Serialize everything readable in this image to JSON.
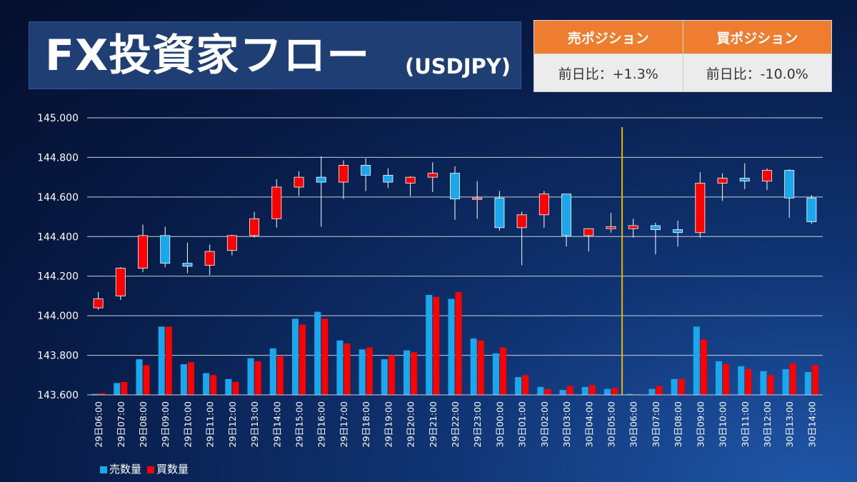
{
  "header": {
    "title_main": "FX投資家フロー",
    "title_sub": "(USDJPY)"
  },
  "positions": {
    "sell_label": "売ポジション",
    "buy_label": "買ポジション",
    "sell_change": "前日比：+1.3%",
    "buy_change": "前日比：-10.0%",
    "header_color": "#ee7d30"
  },
  "chart_data": {
    "type": "candlestick+bar",
    "ylim": [
      143.6,
      145.0
    ],
    "yticks": [
      "145.000",
      "144.800",
      "144.600",
      "144.400",
      "144.200",
      "144.000",
      "143.800",
      "143.600"
    ],
    "categories": [
      "29日06:00",
      "29日07:00",
      "29日08:00",
      "29日09:00",
      "29日10:00",
      "29日11:00",
      "29日12:00",
      "29日13:00",
      "29日14:00",
      "29日15:00",
      "29日16:00",
      "29日17:00",
      "29日18:00",
      "29日19:00",
      "29日20:00",
      "29日21:00",
      "29日22:00",
      "29日23:00",
      "30日00:00",
      "30日01:00",
      "30日02:00",
      "30日03:00",
      "30日04:00",
      "30日05:00",
      "30日06:00",
      "30日07:00",
      "30日08:00",
      "30日09:00",
      "30日10:00",
      "30日11:00",
      "30日12:00",
      "30日13:00",
      "30日14:00"
    ],
    "candles": [
      {
        "o": 144.04,
        "h": 144.12,
        "l": 144.03,
        "c": 144.085
      },
      {
        "o": 144.1,
        "h": 144.245,
        "l": 144.08,
        "c": 144.24
      },
      {
        "o": 144.24,
        "h": 144.46,
        "l": 144.22,
        "c": 144.405
      },
      {
        "o": 144.405,
        "h": 144.45,
        "l": 144.245,
        "c": 144.265
      },
      {
        "o": 144.265,
        "h": 144.37,
        "l": 144.215,
        "c": 144.25
      },
      {
        "o": 144.255,
        "h": 144.36,
        "l": 144.205,
        "c": 144.325
      },
      {
        "o": 144.33,
        "h": 144.41,
        "l": 144.305,
        "c": 144.405
      },
      {
        "o": 144.405,
        "h": 144.525,
        "l": 144.395,
        "c": 144.49
      },
      {
        "o": 144.49,
        "h": 144.69,
        "l": 144.445,
        "c": 144.65
      },
      {
        "o": 144.65,
        "h": 144.73,
        "l": 144.605,
        "c": 144.7
      },
      {
        "o": 144.7,
        "h": 144.805,
        "l": 144.45,
        "c": 144.675
      },
      {
        "o": 144.675,
        "h": 144.785,
        "l": 144.59,
        "c": 144.76
      },
      {
        "o": 144.76,
        "h": 144.795,
        "l": 144.63,
        "c": 144.71
      },
      {
        "o": 144.71,
        "h": 144.745,
        "l": 144.645,
        "c": 144.675
      },
      {
        "o": 144.67,
        "h": 144.705,
        "l": 144.605,
        "c": 144.7
      },
      {
        "o": 144.7,
        "h": 144.775,
        "l": 144.625,
        "c": 144.72
      },
      {
        "o": 144.72,
        "h": 144.755,
        "l": 144.485,
        "c": 144.59
      },
      {
        "o": 144.59,
        "h": 144.68,
        "l": 144.49,
        "c": 144.595
      },
      {
        "o": 144.595,
        "h": 144.63,
        "l": 144.43,
        "c": 144.445
      },
      {
        "o": 144.445,
        "h": 144.525,
        "l": 144.255,
        "c": 144.51
      },
      {
        "o": 144.51,
        "h": 144.63,
        "l": 144.445,
        "c": 144.615
      },
      {
        "o": 144.615,
        "h": 144.615,
        "l": 144.35,
        "c": 144.405
      },
      {
        "o": 144.405,
        "h": 144.44,
        "l": 144.325,
        "c": 144.44
      },
      {
        "o": 144.44,
        "h": 144.52,
        "l": 144.42,
        "c": 144.45
      },
      {
        "o": 144.44,
        "h": 144.49,
        "l": 144.395,
        "c": 144.455
      },
      {
        "o": 144.455,
        "h": 144.47,
        "l": 144.31,
        "c": 144.435
      },
      {
        "o": 144.435,
        "h": 144.48,
        "l": 144.35,
        "c": 144.42
      },
      {
        "o": 144.42,
        "h": 144.725,
        "l": 144.395,
        "c": 144.67
      },
      {
        "o": 144.67,
        "h": 144.72,
        "l": 144.58,
        "c": 144.695
      },
      {
        "o": 144.695,
        "h": 144.77,
        "l": 144.64,
        "c": 144.68
      },
      {
        "o": 144.68,
        "h": 144.745,
        "l": 144.635,
        "c": 144.735
      },
      {
        "o": 144.735,
        "h": 144.74,
        "l": 144.495,
        "c": 144.595
      },
      {
        "o": 144.595,
        "h": 144.61,
        "l": 144.465,
        "c": 144.475
      }
    ],
    "series": [
      {
        "name": "売数量",
        "color": "#1aa7ec",
        "values": [
          143.605,
          143.66,
          143.78,
          143.945,
          143.755,
          143.71,
          143.68,
          143.785,
          143.835,
          143.985,
          144.02,
          143.875,
          143.83,
          143.78,
          143.825,
          144.105,
          144.085,
          143.885,
          143.81,
          143.69,
          143.64,
          143.625,
          143.64,
          143.63,
          143.605,
          143.63,
          143.68,
          143.945,
          143.77,
          143.745,
          143.72,
          143.73,
          143.715
        ]
      },
      {
        "name": "買数量",
        "color": "#ff0000",
        "values": [
          143.608,
          143.665,
          143.75,
          143.945,
          143.765,
          143.7,
          143.665,
          143.77,
          143.795,
          143.955,
          143.985,
          143.86,
          143.84,
          143.8,
          143.815,
          144.095,
          144.12,
          143.875,
          143.84,
          143.7,
          143.63,
          143.645,
          143.65,
          143.635,
          143.603,
          143.645,
          143.68,
          143.88,
          143.755,
          143.73,
          143.7,
          143.76,
          143.75
        ]
      }
    ],
    "up_color": "#ff0000",
    "down_color": "#1aa7ec",
    "divider_after_index": 23,
    "divider_color": "#e8b400",
    "legend": [
      "売数量",
      "買数量"
    ],
    "legend_position": "bottom-left",
    "grid": true
  }
}
